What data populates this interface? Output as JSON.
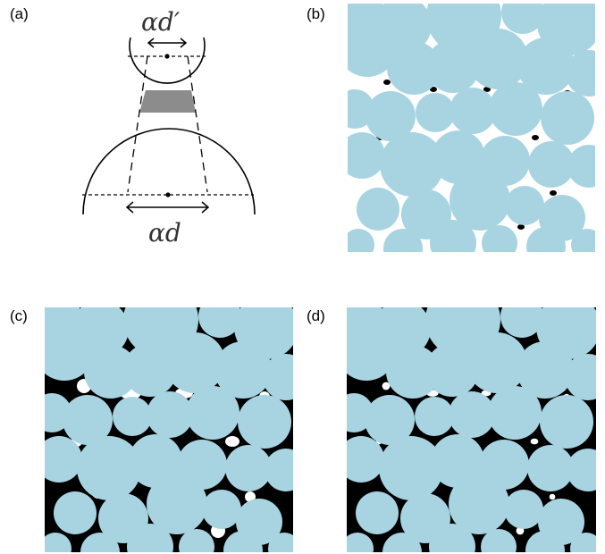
{
  "panels": {
    "a": {
      "label": "(a)",
      "alpha_d_prime": "αd′",
      "alpha_d": "αd"
    },
    "b": {
      "label": "(b)"
    },
    "c": {
      "label": "(c)"
    },
    "d": {
      "label": "(d)"
    }
  },
  "colors": {
    "particle": "#a8d4e2",
    "background_gap": "#000000",
    "bridge": "#8c8c8c",
    "outline": "#000000"
  }
}
